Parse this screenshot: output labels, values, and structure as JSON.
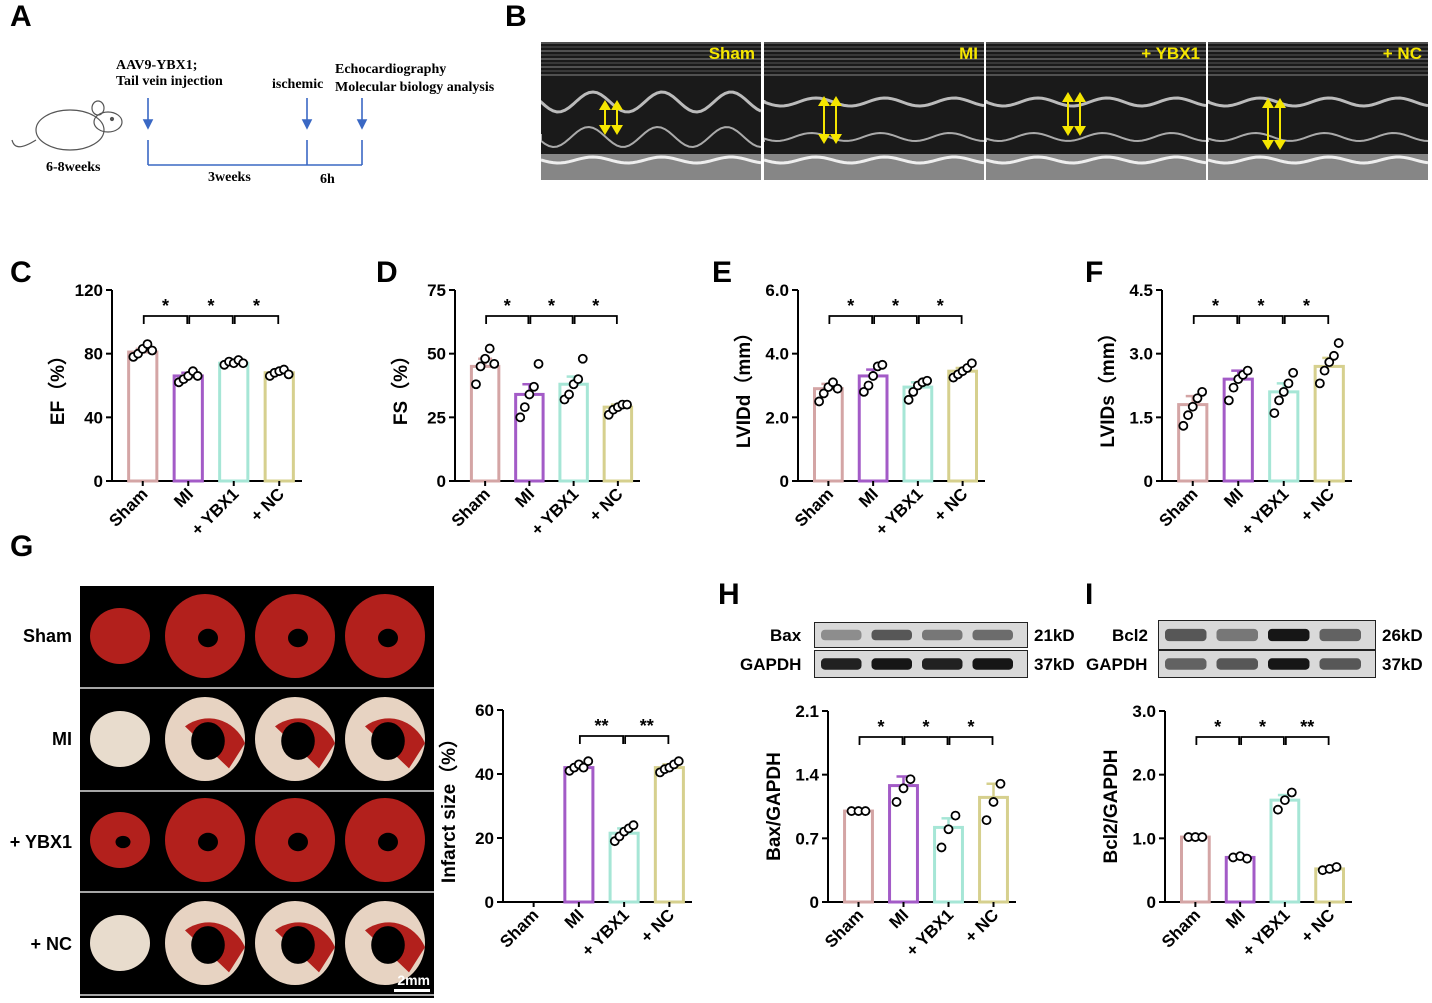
{
  "panels": {
    "A": "A",
    "B": "B",
    "C": "C",
    "D": "D",
    "E": "E",
    "F": "F",
    "G": "G",
    "H": "H",
    "I": "I"
  },
  "timeline": {
    "inj1": "AAV9-YBX1;",
    "inj2": "Tail vein injection",
    "ischemic": "ischemic",
    "echo": "Echocardiography",
    "mol": "Molecular biology analysis",
    "age": "6-8weeks",
    "weeks": "3weeks",
    "hours": "6h"
  },
  "echo_labels": [
    "Sham",
    "MI",
    "+ YBX1",
    "+ NC"
  ],
  "tissue": {
    "rows": [
      "Sham",
      "MI",
      "+ YBX1",
      "+ NC"
    ],
    "scale": "2mm"
  },
  "blots": {
    "H": {
      "rows": [
        {
          "name": "Bax",
          "kd": "21kD"
        },
        {
          "name": "GAPDH",
          "kd": "37kD"
        }
      ]
    },
    "I": {
      "rows": [
        {
          "name": "Bcl2",
          "kd": "26kD"
        },
        {
          "name": "GAPDH",
          "kd": "37kD"
        }
      ]
    }
  },
  "colors": {
    "Sham": "#d4a5a5",
    "MI": "#a35bc7",
    "+ YBX1": "#a6e6d6",
    "+ NC": "#d6d08e"
  },
  "chart_data": [
    {
      "id": "C",
      "type": "bar",
      "categories": [
        "Sham",
        "MI",
        "+ YBX1",
        "+ NC"
      ],
      "values": [
        81,
        66,
        74,
        68
      ],
      "errors": [
        2,
        2,
        1,
        1
      ],
      "points": [
        [
          78,
          80,
          83,
          86,
          82
        ],
        [
          62,
          64,
          66,
          69,
          66
        ],
        [
          73,
          75,
          74,
          76,
          74
        ],
        [
          66,
          68,
          69,
          70,
          67
        ]
      ],
      "ylabel": "EF（%）",
      "ylim": [
        0,
        120
      ],
      "yticks": [
        "0",
        "40",
        "80",
        "120"
      ],
      "sig": [
        "*",
        "*",
        "*"
      ]
    },
    {
      "id": "D",
      "type": "bar",
      "categories": [
        "Sham",
        "MI",
        "+ YBX1",
        "+ NC"
      ],
      "values": [
        45,
        34,
        38,
        29
      ],
      "errors": [
        3,
        4,
        3,
        1
      ],
      "points": [
        [
          38,
          45,
          48,
          52,
          46
        ],
        [
          25,
          29,
          34,
          37,
          46
        ],
        [
          32,
          34,
          38,
          40,
          48
        ],
        [
          26,
          28,
          29,
          30,
          30
        ]
      ],
      "ylabel": "FS（%）",
      "ylim": [
        0,
        75
      ],
      "yticks": [
        "0",
        "25",
        "50",
        "75"
      ],
      "sig": [
        "*",
        "*",
        "*"
      ]
    },
    {
      "id": "E",
      "type": "bar",
      "categories": [
        "Sham",
        "MI",
        "+ YBX1",
        "+ NC"
      ],
      "values": [
        2.9,
        3.3,
        2.95,
        3.45
      ],
      "errors": [
        0.15,
        0.2,
        0.15,
        0.1
      ],
      "points": [
        [
          2.5,
          2.75,
          2.95,
          3.1,
          2.9
        ],
        [
          2.8,
          3.0,
          3.3,
          3.6,
          3.65
        ],
        [
          2.55,
          2.8,
          3.0,
          3.1,
          3.15
        ],
        [
          3.25,
          3.35,
          3.45,
          3.55,
          3.7
        ]
      ],
      "ylabel": "LVIDd（mm）",
      "ylim": [
        0,
        6.0
      ],
      "yticks": [
        "0",
        "2.0",
        "4.0",
        "6.0"
      ],
      "sig": [
        "*",
        "*",
        "*"
      ]
    },
    {
      "id": "F",
      "type": "bar",
      "categories": [
        "Sham",
        "MI",
        "+ YBX1",
        "+ NC"
      ],
      "values": [
        1.8,
        2.4,
        2.1,
        2.7
      ],
      "errors": [
        0.2,
        0.2,
        0.2,
        0.2
      ],
      "points": [
        [
          1.3,
          1.55,
          1.75,
          1.95,
          2.1
        ],
        [
          1.9,
          2.2,
          2.4,
          2.5,
          2.6
        ],
        [
          1.6,
          1.9,
          2.1,
          2.3,
          2.55
        ],
        [
          2.3,
          2.6,
          2.8,
          2.95,
          3.25
        ]
      ],
      "ylabel": "LVIDs（mm）",
      "ylim": [
        0,
        4.5
      ],
      "yticks": [
        "0",
        "1.5",
        "3.0",
        "4.5"
      ],
      "sig": [
        "*",
        "*",
        "*"
      ]
    },
    {
      "id": "G",
      "type": "bar",
      "categories": [
        "Sham",
        "MI",
        "+ YBX1",
        "+ NC"
      ],
      "values": [
        0,
        42,
        21.5,
        42
      ],
      "errors": [
        0,
        1,
        1.5,
        1
      ],
      "points": [
        [],
        [
          41,
          42,
          43,
          42,
          44
        ],
        [
          19,
          20.5,
          22,
          23,
          24
        ],
        [
          40.5,
          41.5,
          42,
          43,
          44
        ]
      ],
      "ylabel": "Infarct size（%）",
      "ylim": [
        0,
        60
      ],
      "yticks": [
        "0",
        "20",
        "40",
        "60"
      ],
      "sig": [
        "**",
        "**"
      ],
      "sigStart": 1
    },
    {
      "id": "H",
      "type": "bar",
      "categories": [
        "Sham",
        "MI",
        "+ YBX1",
        "+ NC"
      ],
      "values": [
        1.0,
        1.28,
        0.82,
        1.15
      ],
      "errors": [
        0.01,
        0.1,
        0.1,
        0.15
      ],
      "points": [
        [
          1.0,
          1.0,
          1.0
        ],
        [
          1.1,
          1.25,
          1.35
        ],
        [
          0.6,
          0.8,
          0.95
        ],
        [
          0.9,
          1.1,
          1.3
        ]
      ],
      "ylabel": "Bax/GAPDH",
      "ylim": [
        0,
        2.1
      ],
      "yticks": [
        "0",
        "0.7",
        "1.4",
        "2.1"
      ],
      "sig": [
        "*",
        "*",
        "*"
      ]
    },
    {
      "id": "I",
      "type": "bar",
      "categories": [
        "Sham",
        "MI",
        "+ YBX1",
        "+ NC"
      ],
      "values": [
        1.02,
        0.7,
        1.6,
        0.52
      ],
      "errors": [
        0.01,
        0.04,
        0.08,
        0.02
      ],
      "points": [
        [
          1.02,
          1.02,
          1.02
        ],
        [
          0.7,
          0.72,
          0.68
        ],
        [
          1.45,
          1.6,
          1.72
        ],
        [
          0.5,
          0.52,
          0.55
        ]
      ],
      "ylabel": "Bcl2/GAPDH",
      "ylim": [
        0,
        3.0
      ],
      "yticks": [
        "0",
        "1.0",
        "2.0",
        "3.0"
      ],
      "sig": [
        "*",
        "*",
        "**"
      ]
    }
  ]
}
